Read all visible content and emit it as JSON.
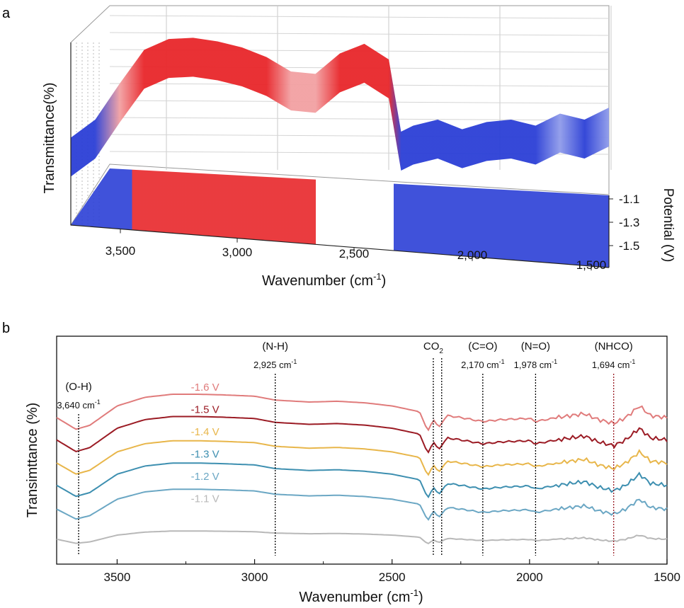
{
  "panels": {
    "a": "a",
    "b": "b"
  },
  "chart_data": [
    {
      "type": "surface3d",
      "panel": "a",
      "xlabel": "Wavenumber (cm",
      "xlabel_sup": "-1",
      "xlabel_end": ")",
      "ylabel": "Transmittance(%)",
      "zlabel": "Potential (V)",
      "x_ticks": [
        "3,500",
        "3,000",
        "2,500",
        "2,000",
        "1,500"
      ],
      "z_ticks": [
        "-1.1",
        "-1.3",
        "-1.5"
      ],
      "xlim": [
        3700,
        1500
      ],
      "color_high": "#e8262a",
      "color_mid": "#ffffff",
      "color_low": "#2b3fd6",
      "surface_profile": {
        "x": [
          3700,
          3600,
          3500,
          3400,
          3300,
          3200,
          3100,
          3000,
          2900,
          2800,
          2700,
          2600,
          2500,
          2400,
          2350,
          2300,
          2200,
          2100,
          2000,
          1900,
          1800,
          1700,
          1600,
          1500
        ],
        "y": [
          0.15,
          0.3,
          0.6,
          0.88,
          0.97,
          0.98,
          0.95,
          0.9,
          0.82,
          0.7,
          0.68,
          0.85,
          0.93,
          0.8,
          0.2,
          0.25,
          0.3,
          0.22,
          0.28,
          0.3,
          0.25,
          0.35,
          0.3,
          0.4
        ]
      },
      "heatmap_bands": [
        {
          "from": 3700,
          "to": 3450,
          "level": "low"
        },
        {
          "from": 3450,
          "to": 2700,
          "level": "high"
        },
        {
          "from": 2700,
          "to": 2380,
          "level": "mid"
        },
        {
          "from": 2380,
          "to": 1500,
          "level": "low"
        }
      ]
    },
    {
      "type": "line",
      "panel": "b",
      "xlabel": "Wavenumber (cm",
      "xlabel_sup": "-1",
      "xlabel_end": ")",
      "ylabel": "Transimttance (%)",
      "xlim": [
        3720,
        1500
      ],
      "x_ticks": [
        3500,
        3000,
        2500,
        2000,
        1500
      ],
      "x": [
        3720,
        3650,
        3600,
        3500,
        3400,
        3300,
        3200,
        3100,
        3000,
        2925,
        2800,
        2700,
        2600,
        2500,
        2400,
        2370,
        2350,
        2330,
        2300,
        2250,
        2170,
        2100,
        2000,
        1978,
        1900,
        1850,
        1800,
        1750,
        1694,
        1650,
        1600,
        1560,
        1500
      ],
      "base_shape": [
        0.4,
        0.1,
        0.2,
        0.7,
        0.92,
        1.0,
        1.0,
        0.98,
        0.95,
        0.85,
        0.8,
        0.82,
        0.78,
        0.7,
        0.55,
        0.05,
        0.35,
        0.15,
        0.45,
        0.4,
        0.3,
        0.35,
        0.38,
        0.3,
        0.4,
        0.45,
        0.5,
        0.35,
        0.25,
        0.4,
        0.7,
        0.45,
        0.4
      ],
      "series": [
        {
          "name": "-1.6 V",
          "color": "#e07b7b",
          "offset": 0,
          "amp": 1.0
        },
        {
          "name": "-1.5 V",
          "color": "#9b1b24",
          "offset": 1,
          "amp": 1.0
        },
        {
          "name": "-1.4 V",
          "color": "#e8b64a",
          "offset": 2,
          "amp": 0.95
        },
        {
          "name": "-1.3 V",
          "color": "#3d8fb0",
          "offset": 3,
          "amp": 0.95
        },
        {
          "name": "-1.2 V",
          "color": "#6ba7c4",
          "offset": 4,
          "amp": 0.85
        },
        {
          "name": "-1.1 V",
          "color": "#b8b8b8",
          "offset": 5,
          "amp": 0.35
        }
      ],
      "annotations": [
        {
          "label": "(O-H)",
          "value_label": "3,640 cm",
          "sup": "-1",
          "x": 3640,
          "color": "#000000"
        },
        {
          "label": "(N-H)",
          "value_label": "2,925 cm",
          "sup": "-1",
          "x": 2925,
          "color": "#000000"
        },
        {
          "label": "CO",
          "sub": "2",
          "value_label": "",
          "sup": "",
          "x": 2350,
          "x2": 2335,
          "color": "#000000"
        },
        {
          "label": "(C=O)",
          "value_label": "2,170 cm",
          "sup": "-1",
          "x": 2170,
          "color": "#000000"
        },
        {
          "label": "(N=O)",
          "value_label": "1,978 cm",
          "sup": "-1",
          "x": 1978,
          "color": "#000000"
        },
        {
          "label": "(NHCO)",
          "value_label": "1,694 cm",
          "sup": "-1",
          "x": 1694,
          "color": "#9b1b24"
        }
      ]
    }
  ]
}
